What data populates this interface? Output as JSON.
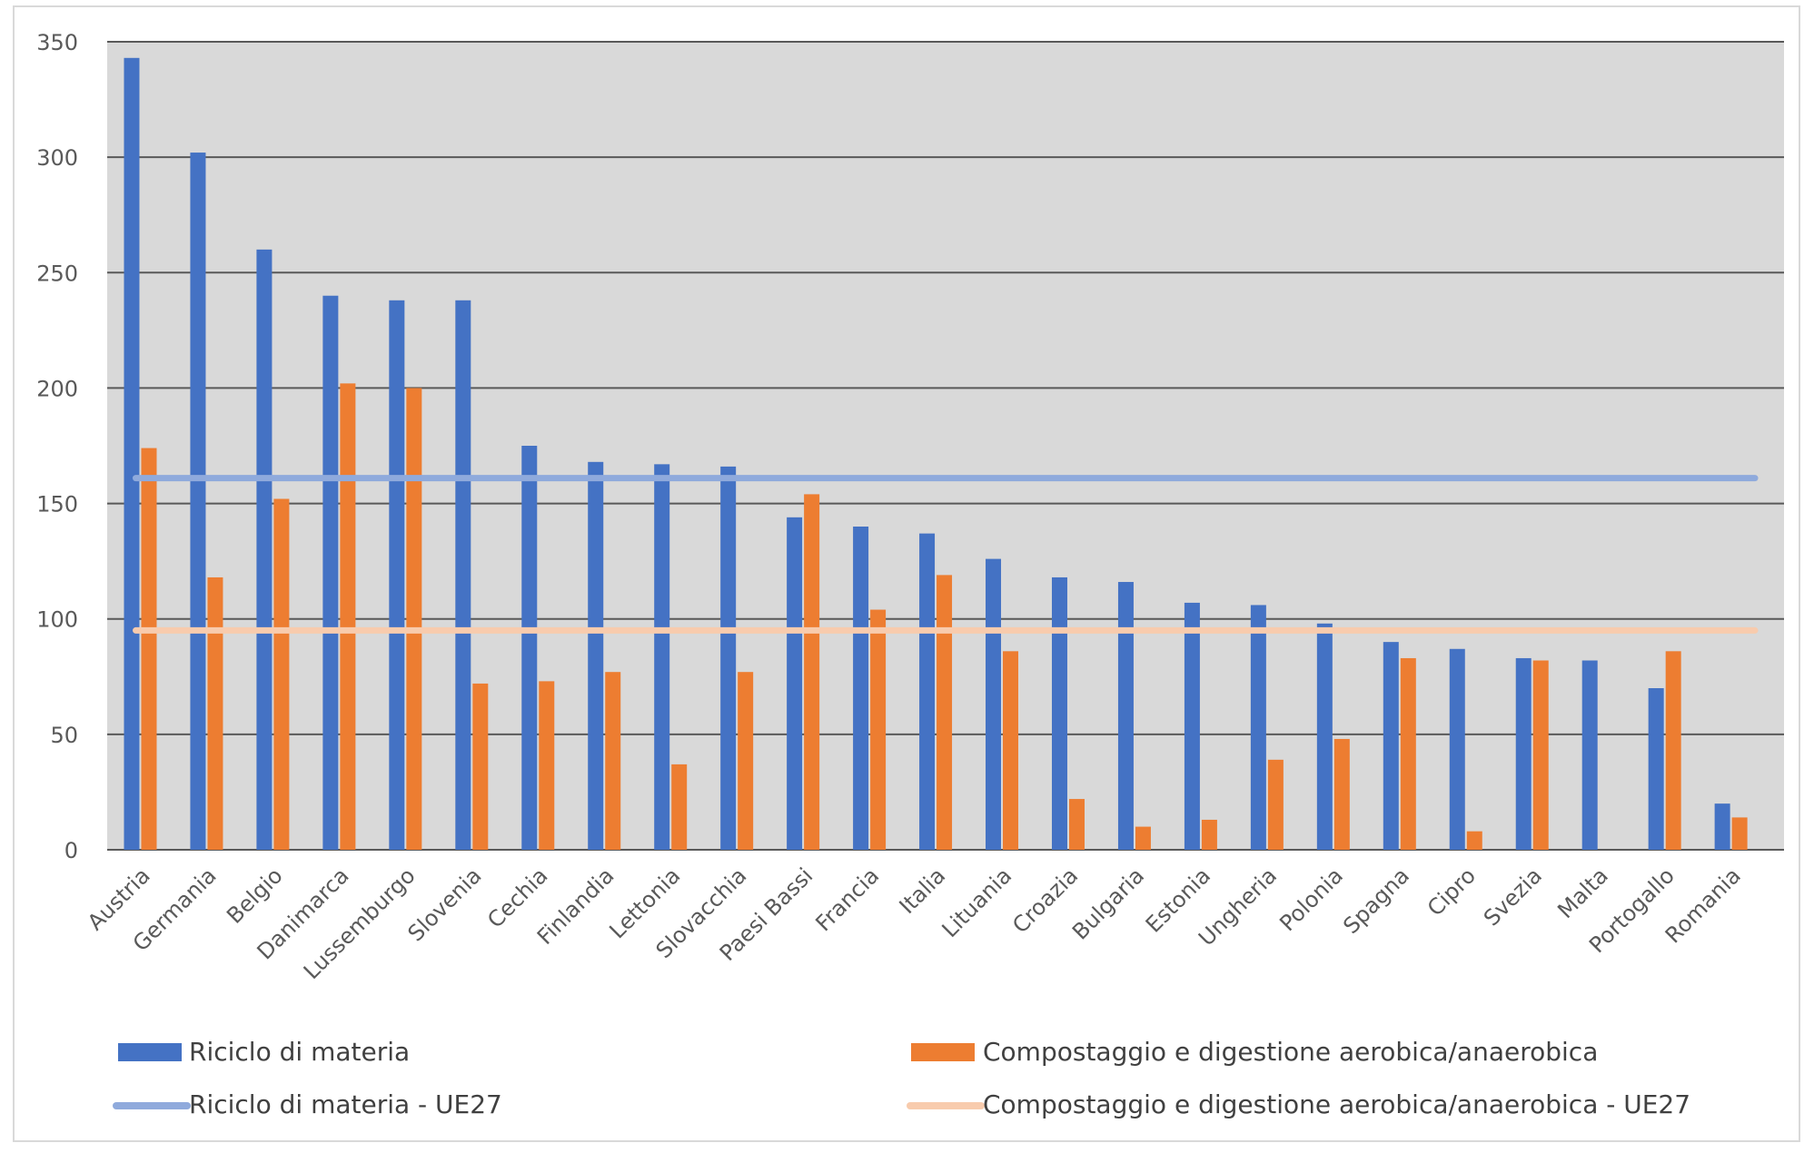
{
  "chart_data": {
    "type": "bar",
    "title": "",
    "xlabel": "",
    "ylabel": "",
    "ylim": [
      0,
      350
    ],
    "yticks": [
      0,
      50,
      100,
      150,
      200,
      250,
      300,
      350
    ],
    "grid": true,
    "legend_position": "bottom",
    "categories": [
      "Austria",
      "Germania",
      "Belgio",
      "Danimarca",
      "Lussemburgo",
      "Slovenia",
      "Cechia",
      "Finlandia",
      "Lettonia",
      "Slovacchia",
      "Paesi Bassi",
      "Francia",
      "Italia",
      "Lituania",
      "Croazia",
      "Bulgaria",
      "Estonia",
      "Ungheria",
      "Polonia",
      "Spagna",
      "Cipro",
      "Svezia",
      "Malta",
      "Portogallo",
      "Romania"
    ],
    "series": [
      {
        "name": "Riciclo di materia",
        "color": "#4472c4",
        "values": [
          343,
          302,
          260,
          240,
          238,
          238,
          175,
          168,
          167,
          166,
          144,
          140,
          137,
          126,
          118,
          116,
          107,
          106,
          98,
          90,
          87,
          83,
          82,
          70,
          20
        ]
      },
      {
        "name": "Compostaggio e digestione aerobica/anaerobica",
        "color": "#ed7d31",
        "values": [
          174,
          118,
          152,
          202,
          200,
          72,
          73,
          77,
          37,
          77,
          154,
          104,
          119,
          86,
          22,
          10,
          13,
          39,
          48,
          83,
          8,
          82,
          0,
          86,
          14
        ]
      }
    ],
    "reference_lines": [
      {
        "name": "Riciclo di materia - UE27",
        "value": 161,
        "color": "#8faadc"
      },
      {
        "name": "Compostaggio e digestione aerobica/anaerobica - UE27",
        "value": 95,
        "color": "#f8cbad"
      }
    ]
  },
  "colors": {
    "plot_background": "#d9d9d9",
    "gridline": "#595959",
    "frame_border": "#d9d9d9"
  }
}
